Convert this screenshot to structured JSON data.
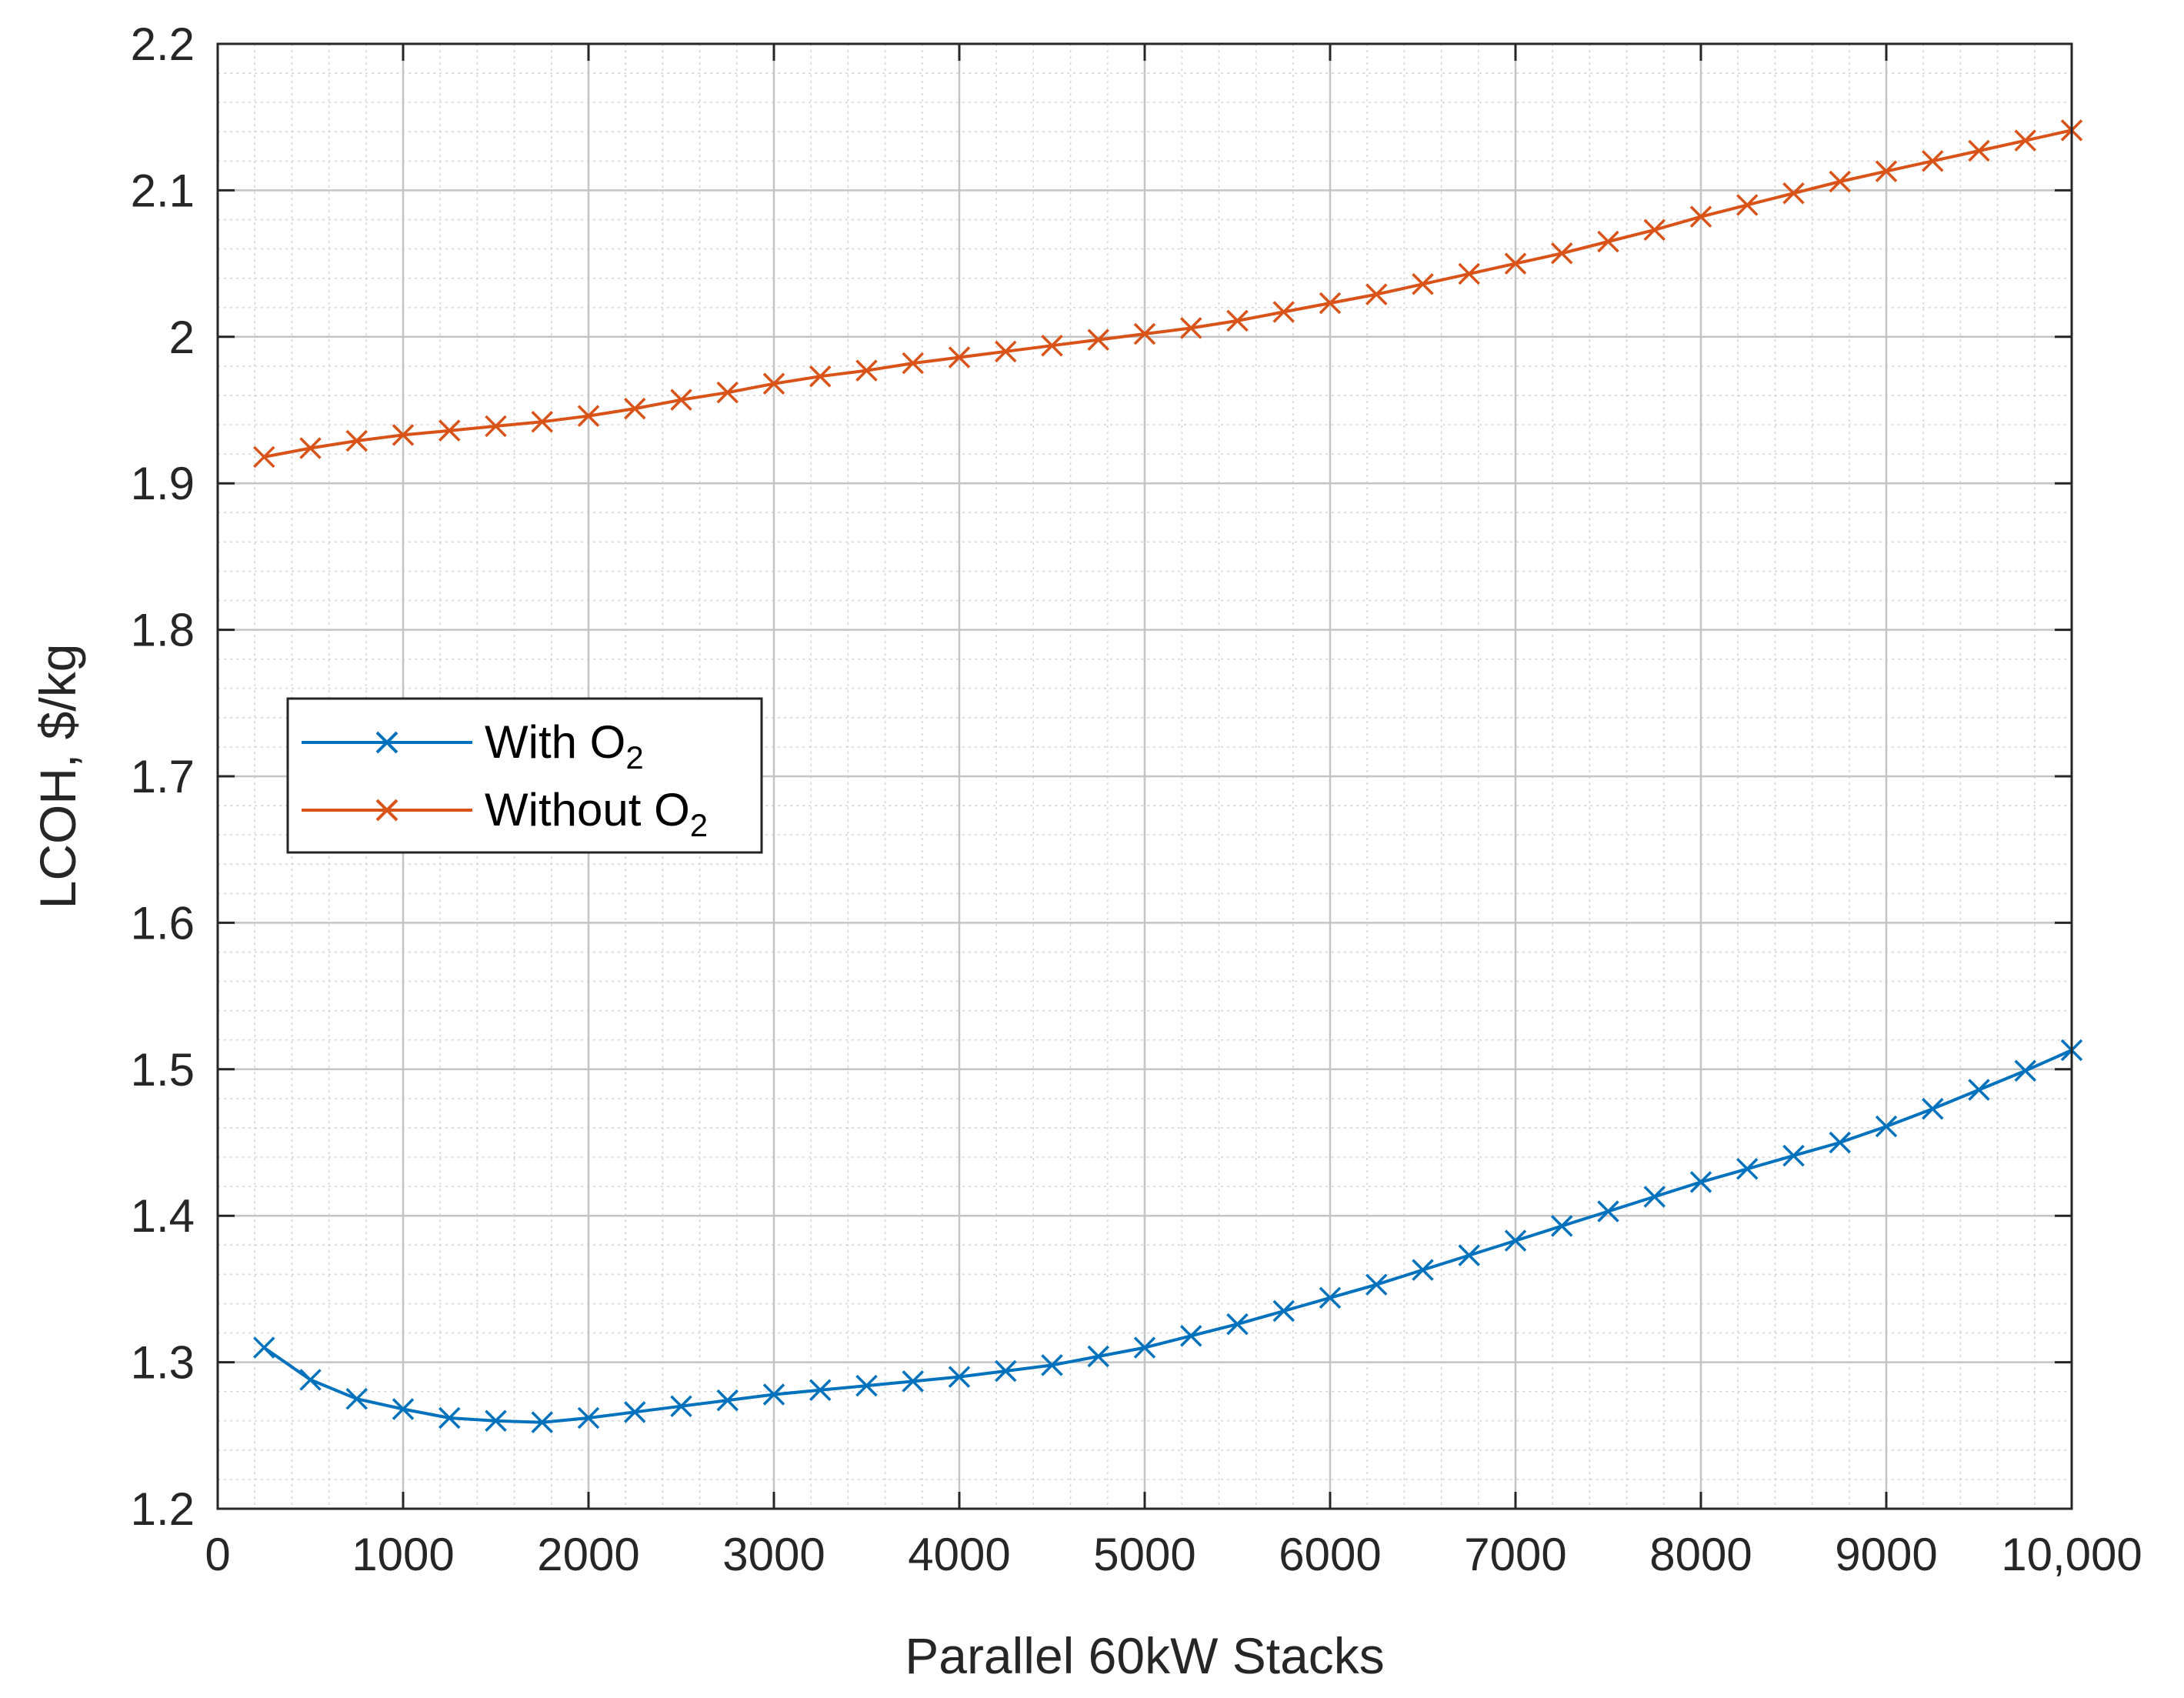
{
  "chart_data": {
    "type": "line",
    "title": "",
    "xlabel": "Parallel 60kW Stacks",
    "ylabel": "LCOH, $/kg",
    "xlim": [
      0,
      10000
    ],
    "ylim": [
      1.2,
      2.2
    ],
    "grid": true,
    "minor_grid": true,
    "legend_position": "middle-left",
    "x_ticks": [
      0,
      1000,
      2000,
      3000,
      4000,
      5000,
      6000,
      7000,
      8000,
      9000,
      10000
    ],
    "x_tick_labels": [
      "0",
      "1000",
      "2000",
      "3000",
      "4000",
      "5000",
      "6000",
      "7000",
      "8000",
      "9000",
      "10,000"
    ],
    "y_ticks": [
      1.2,
      1.3,
      1.4,
      1.5,
      1.6,
      1.7,
      1.8,
      1.9,
      2.0,
      2.1,
      2.2
    ],
    "y_tick_labels": [
      "1.2",
      "1.3",
      "1.4",
      "1.5",
      "1.6",
      "1.7",
      "1.8",
      "1.9",
      "2",
      "2.1",
      "2.2"
    ],
    "x": [
      250,
      500,
      750,
      1000,
      1250,
      1500,
      1750,
      2000,
      2250,
      2500,
      2750,
      3000,
      3250,
      3500,
      3750,
      4000,
      4250,
      4500,
      4750,
      5000,
      5250,
      5500,
      5750,
      6000,
      6250,
      6500,
      6750,
      7000,
      7250,
      7500,
      7750,
      8000,
      8250,
      8500,
      8750,
      9000,
      9250,
      9500,
      9750,
      10000
    ],
    "series": [
      {
        "name": "With O",
        "subscript": "2",
        "color": "#0072BD",
        "marker": "x",
        "values": [
          1.31,
          1.288,
          1.275,
          1.268,
          1.262,
          1.26,
          1.259,
          1.262,
          1.266,
          1.27,
          1.274,
          1.278,
          1.281,
          1.284,
          1.287,
          1.29,
          1.294,
          1.298,
          1.304,
          1.31,
          1.318,
          1.326,
          1.335,
          1.344,
          1.353,
          1.363,
          1.373,
          1.383,
          1.393,
          1.403,
          1.413,
          1.423,
          1.432,
          1.441,
          1.45,
          1.461,
          1.473,
          1.486,
          1.499,
          1.513
        ]
      },
      {
        "name": "Without O",
        "subscript": "2",
        "color": "#D95319",
        "marker": "x",
        "values": [
          1.918,
          1.924,
          1.929,
          1.933,
          1.936,
          1.939,
          1.942,
          1.946,
          1.951,
          1.957,
          1.962,
          1.968,
          1.973,
          1.977,
          1.982,
          1.986,
          1.99,
          1.994,
          1.998,
          2.002,
          2.006,
          2.011,
          2.017,
          2.023,
          2.029,
          2.036,
          2.043,
          2.05,
          2.057,
          2.065,
          2.073,
          2.082,
          2.09,
          2.098,
          2.106,
          2.113,
          2.12,
          2.127,
          2.134,
          2.141
        ]
      }
    ]
  }
}
